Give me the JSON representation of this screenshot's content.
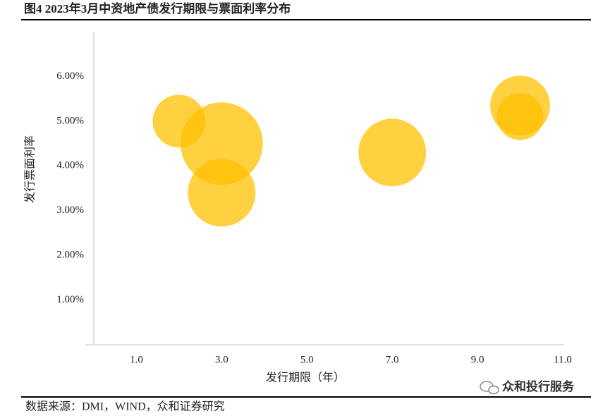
{
  "chart_data": {
    "type": "bubble",
    "title": "图4 2023年3月中资地产债发行期限与票面利率分布",
    "x_label": "发行期限（年）",
    "y_label": "发行票面利率",
    "source": "数据来源：DMI，WIND，众和证券研究",
    "watermark": "众和投行服务",
    "x": [
      2,
      3,
      3,
      7,
      10,
      10
    ],
    "values": [
      5.0,
      4.5,
      3.4,
      4.3,
      5.35,
      5.1
    ],
    "sizes": [
      14,
      34,
      23,
      23,
      18,
      11
    ],
    "color": "#FFC000",
    "xlim": [
      0,
      11
    ],
    "ylim": [
      0,
      7
    ],
    "xticks": [
      {
        "value": 1,
        "label": "1.0"
      },
      {
        "value": 3,
        "label": "3.0"
      },
      {
        "value": 5,
        "label": "5.0"
      },
      {
        "value": 7,
        "label": "7.0"
      },
      {
        "value": 9,
        "label": "9.0"
      },
      {
        "value": 11,
        "label": "11.0"
      }
    ],
    "yticks": [
      {
        "value": 1,
        "label": "1.00%"
      },
      {
        "value": 2,
        "label": "2.00%"
      },
      {
        "value": 3,
        "label": "3.00%"
      },
      {
        "value": 4,
        "label": "4.00%"
      },
      {
        "value": 5,
        "label": "5.00%"
      },
      {
        "value": 6,
        "label": "6.00%"
      }
    ],
    "grid": false
  }
}
